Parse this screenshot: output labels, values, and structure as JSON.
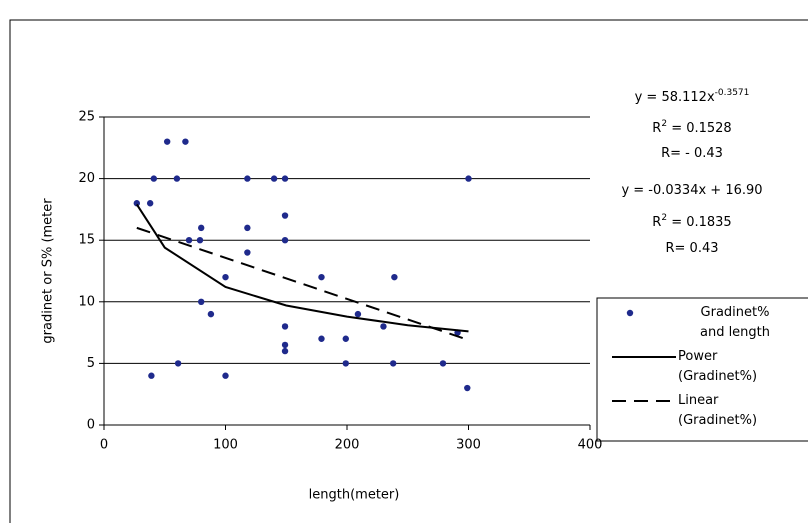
{
  "chart_data": {
    "type": "scatter",
    "x_label": "length(meter)",
    "y_label": "gradinet or S% (meter",
    "xlim": [
      0,
      400
    ],
    "xticks": [
      0,
      100,
      200,
      300,
      400
    ],
    "ylim": [
      0,
      25
    ],
    "yticks": [
      0,
      5,
      10,
      15,
      20,
      25
    ],
    "grid": true,
    "legend": "right",
    "series": [
      {
        "name": "Gradinet% and length",
        "color": "#1f2a8c",
        "x": [
          27,
          38,
          41,
          39,
          52,
          67,
          60,
          61,
          70,
          80,
          79,
          80,
          88,
          100,
          100,
          118,
          118,
          118,
          140,
          149,
          149,
          149,
          149,
          149,
          149,
          179,
          179,
          199,
          199,
          209,
          230,
          239,
          238,
          279,
          300,
          299,
          291
        ],
        "values": [
          18,
          18,
          20,
          4,
          23,
          23,
          20,
          5,
          15,
          16,
          15,
          10,
          9,
          12,
          4,
          20,
          16,
          14,
          20,
          20,
          17,
          15,
          8,
          6,
          6.5,
          12,
          7,
          7,
          5,
          9,
          8,
          12,
          5,
          5,
          20,
          3,
          7.5
        ]
      }
    ],
    "trendlines": [
      {
        "name": "Power (Gradinet%)",
        "style": "solid",
        "color": "#000000",
        "x": [
          27,
          50,
          100,
          150,
          200,
          250,
          300
        ],
        "values": [
          17.9,
          14.4,
          11.2,
          9.7,
          8.8,
          8.1,
          7.6
        ]
      },
      {
        "name": "Linear (Gradinet%)",
        "style": "dashed",
        "color": "#000000",
        "x": [
          27,
          300
        ],
        "values": [
          16,
          6.9
        ]
      }
    ],
    "annotations": [
      {
        "text": "y = 58.112x",
        "sup": "-0.3571"
      },
      {
        "text": "R",
        "sup": "2",
        "after": " = 0.1528"
      },
      {
        "text": "R= - 0.43"
      },
      {
        "text": "y = -0.0334x + 16.90"
      },
      {
        "text": "R",
        "sup": "2",
        "after": " = 0.1835"
      },
      {
        "text": "R= 0.43"
      }
    ]
  }
}
